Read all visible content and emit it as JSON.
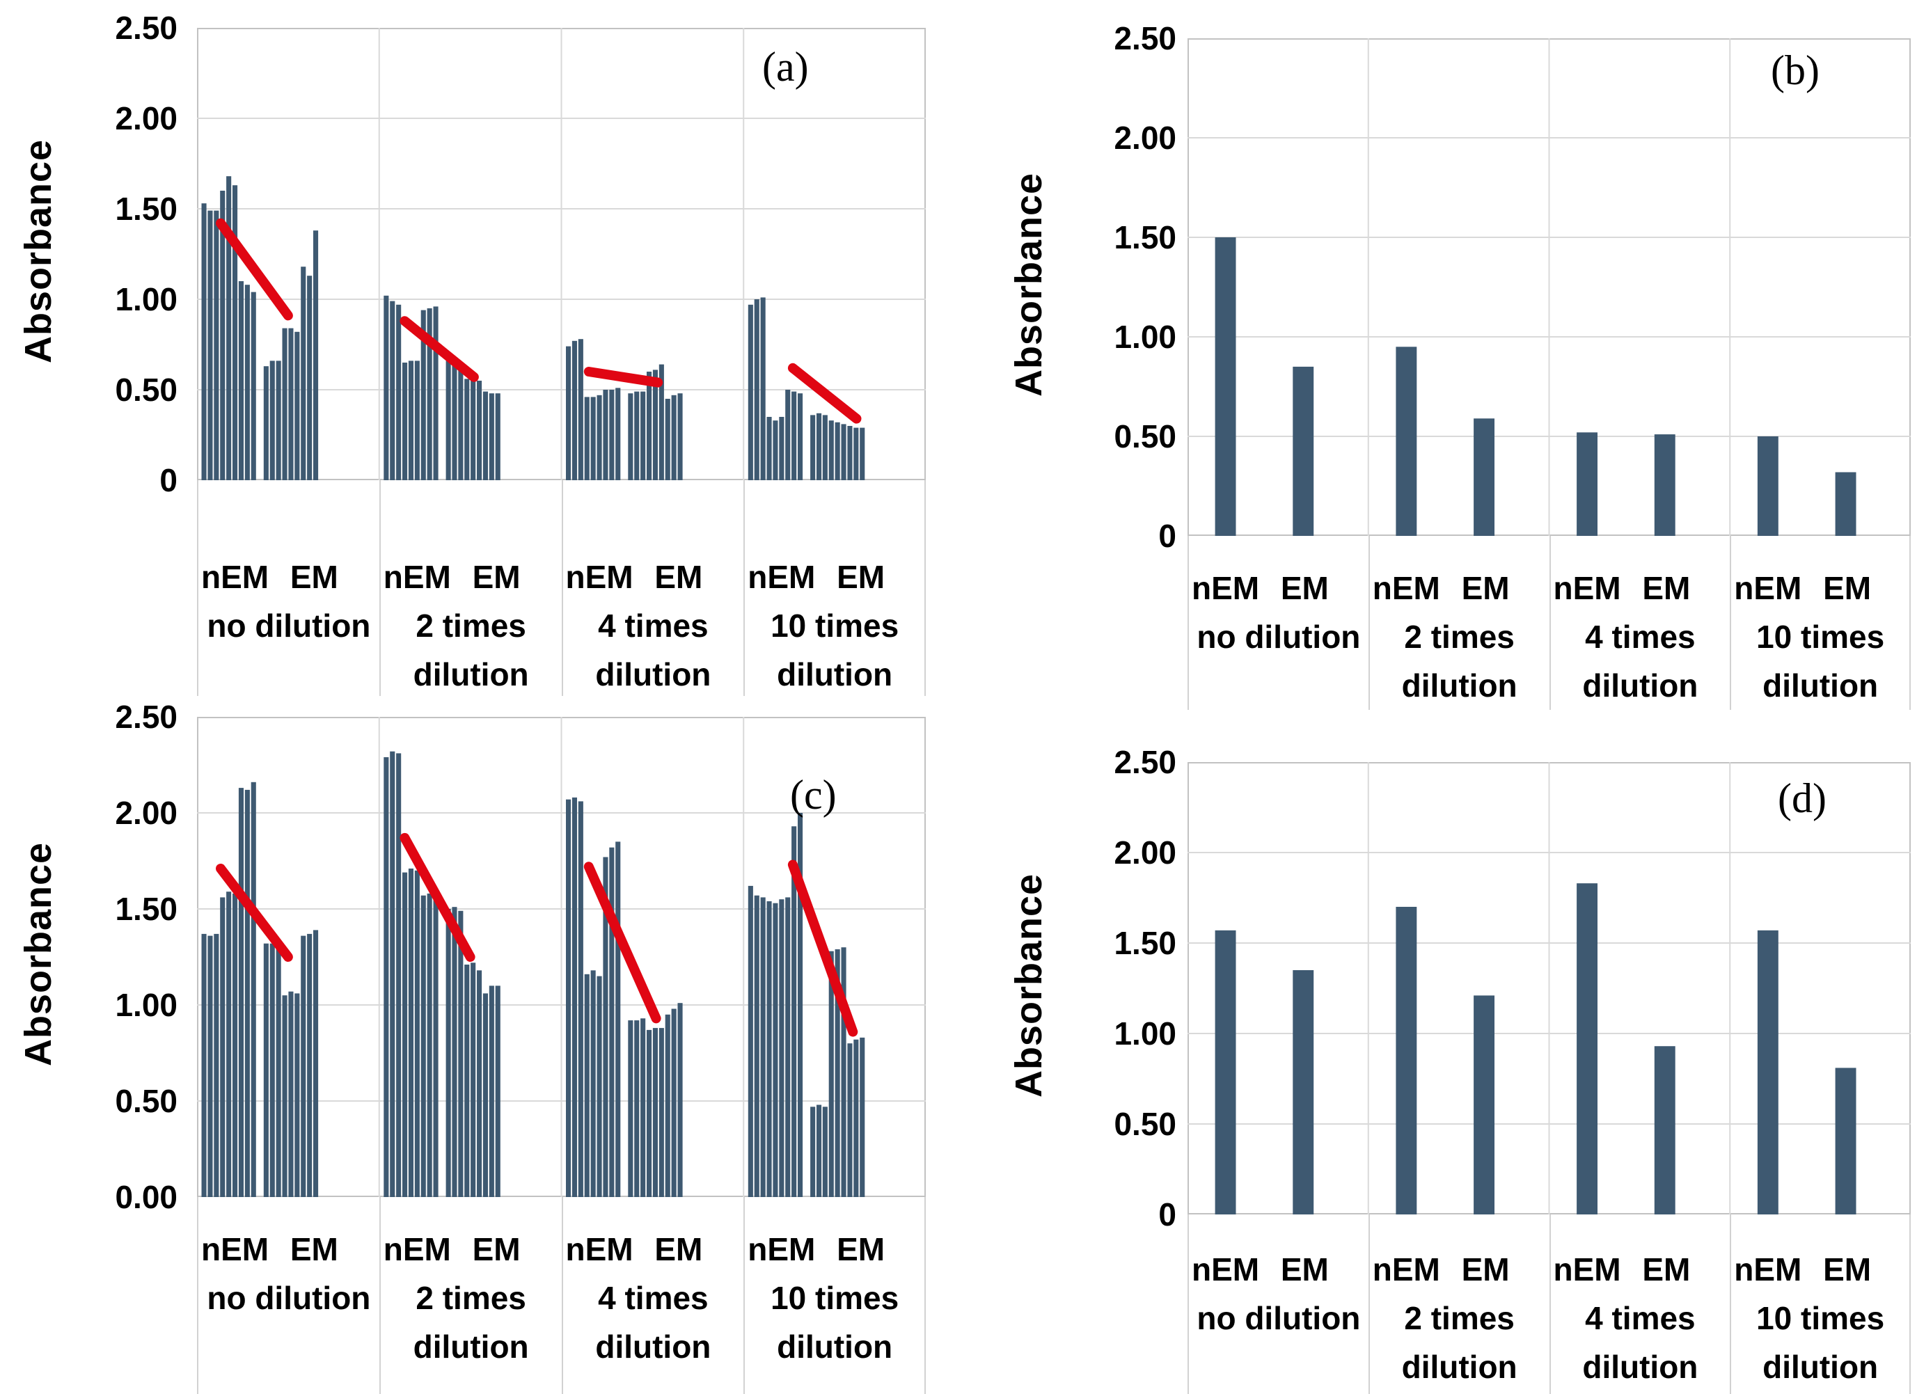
{
  "chart_data": [
    {
      "id": "a",
      "type": "bar",
      "letter": "(a)",
      "ylabel": "Absorbance",
      "yticks": [
        "2.50",
        "2.00",
        "1.50",
        "1.00",
        "0.50",
        "0"
      ],
      "ylim": [
        0,
        2.5
      ],
      "grid": "horizontal",
      "sub_labels": "nEM EM",
      "groups": [
        {
          "label_lines": [
            "no dilution"
          ],
          "series": [
            {
              "name": "nEM",
              "values": [
                1.53,
                1.49,
                1.49,
                1.6,
                1.68,
                1.63,
                1.1,
                1.08,
                1.04
              ]
            },
            {
              "name": "EM",
              "values": [
                0.63,
                0.66,
                0.66,
                0.84,
                0.84,
                0.82,
                1.18,
                1.13,
                1.38
              ]
            }
          ],
          "trend": {
            "x1": 0.13,
            "y1": 1.42,
            "x2": 0.5,
            "y2": 0.91
          }
        },
        {
          "label_lines": [
            "2 times",
            "dilution"
          ],
          "series": [
            {
              "name": "nEM",
              "values": [
                1.02,
                0.99,
                0.97,
                0.65,
                0.66,
                0.66,
                0.94,
                0.95,
                0.96
              ]
            },
            {
              "name": "EM",
              "values": [
                0.66,
                0.65,
                0.64,
                0.56,
                0.57,
                0.55,
                0.49,
                0.48,
                0.48
              ]
            }
          ],
          "trend": {
            "x1": 0.14,
            "y1": 0.88,
            "x2": 0.52,
            "y2": 0.57
          }
        },
        {
          "label_lines": [
            "4 times",
            "dilution"
          ],
          "series": [
            {
              "name": "nEM",
              "values": [
                0.74,
                0.77,
                0.78,
                0.46,
                0.46,
                0.47,
                0.5,
                0.5,
                0.51
              ]
            },
            {
              "name": "EM",
              "values": [
                0.48,
                0.49,
                0.49,
                0.6,
                0.61,
                0.64,
                0.45,
                0.47,
                0.48
              ]
            }
          ],
          "trend": {
            "x1": 0.15,
            "y1": 0.6,
            "x2": 0.53,
            "y2": 0.54
          }
        },
        {
          "label_lines": [
            "10 times",
            "dilution"
          ],
          "series": [
            {
              "name": "nEM",
              "values": [
                0.97,
                1.0,
                1.01,
                0.35,
                0.33,
                0.35,
                0.5,
                0.49,
                0.48
              ]
            },
            {
              "name": "EM",
              "values": [
                0.36,
                0.37,
                0.36,
                0.33,
                0.32,
                0.31,
                0.3,
                0.29,
                0.29
              ]
            }
          ],
          "trend": {
            "x1": 0.27,
            "y1": 0.62,
            "x2": 0.62,
            "y2": 0.34
          }
        }
      ]
    },
    {
      "id": "b",
      "type": "bar",
      "letter": "(b)",
      "ylabel": "Absorbance",
      "yticks": [
        "2.50",
        "2.00",
        "1.50",
        "1.00",
        "0.50",
        "0"
      ],
      "ylim": [
        0,
        2.5
      ],
      "grid": "horizontal",
      "sub_labels": "nEM EM",
      "groups": [
        {
          "label_lines": [
            "no dilution"
          ],
          "series": [
            {
              "name": "nEM",
              "values": [
                1.5
              ]
            },
            {
              "name": "EM",
              "values": [
                0.85
              ]
            }
          ],
          "trend": null
        },
        {
          "label_lines": [
            "2 times",
            "dilution"
          ],
          "series": [
            {
              "name": "nEM",
              "values": [
                0.95
              ]
            },
            {
              "name": "EM",
              "values": [
                0.59
              ]
            }
          ],
          "trend": null
        },
        {
          "label_lines": [
            "4 times",
            "dilution"
          ],
          "series": [
            {
              "name": "nEM",
              "values": [
                0.52
              ]
            },
            {
              "name": "EM",
              "values": [
                0.51
              ]
            }
          ],
          "trend": null
        },
        {
          "label_lines": [
            "10 times",
            "dilution"
          ],
          "series": [
            {
              "name": "nEM",
              "values": [
                0.5
              ]
            },
            {
              "name": "EM",
              "values": [
                0.32
              ]
            }
          ],
          "trend": null
        }
      ]
    },
    {
      "id": "c",
      "type": "bar",
      "letter": "(c)",
      "ylabel": "Absorbance",
      "yticks": [
        "2.50",
        "2.00",
        "1.50",
        "1.00",
        "0.50",
        "0.00"
      ],
      "ylim": [
        0,
        2.5
      ],
      "grid": "horizontal",
      "sub_labels": "nEM EM",
      "groups": [
        {
          "label_lines": [
            "no dilution"
          ],
          "series": [
            {
              "name": "nEM",
              "values": [
                1.37,
                1.36,
                1.37,
                1.56,
                1.59,
                1.58,
                2.13,
                2.12,
                2.16
              ]
            },
            {
              "name": "EM",
              "values": [
                1.32,
                1.32,
                1.31,
                1.05,
                1.07,
                1.06,
                1.36,
                1.37,
                1.39
              ]
            }
          ],
          "trend": {
            "x1": 0.13,
            "y1": 1.71,
            "x2": 0.5,
            "y2": 1.25
          }
        },
        {
          "label_lines": [
            "2 times",
            "dilution"
          ],
          "series": [
            {
              "name": "nEM",
              "values": [
                2.29,
                2.32,
                2.31,
                1.69,
                1.71,
                1.7,
                1.57,
                1.58,
                1.59
              ]
            },
            {
              "name": "EM",
              "values": [
                1.5,
                1.51,
                1.49,
                1.21,
                1.22,
                1.18,
                1.06,
                1.1,
                1.1
              ]
            }
          ],
          "trend": {
            "x1": 0.14,
            "y1": 1.87,
            "x2": 0.5,
            "y2": 1.25
          }
        },
        {
          "label_lines": [
            "4 times",
            "dilution"
          ],
          "series": [
            {
              "name": "nEM",
              "values": [
                2.07,
                2.08,
                2.06,
                1.16,
                1.18,
                1.15,
                1.77,
                1.82,
                1.85
              ]
            },
            {
              "name": "EM",
              "values": [
                0.92,
                0.92,
                0.93,
                0.87,
                0.88,
                0.88,
                0.95,
                0.98,
                1.01
              ]
            }
          ],
          "trend": {
            "x1": 0.15,
            "y1": 1.72,
            "x2": 0.52,
            "y2": 0.93
          }
        },
        {
          "label_lines": [
            "10 times",
            "dilution"
          ],
          "series": [
            {
              "name": "nEM",
              "values": [
                1.62,
                1.57,
                1.56,
                1.54,
                1.53,
                1.55,
                1.56,
                1.93,
                2.0
              ]
            },
            {
              "name": "EM",
              "values": [
                0.47,
                0.48,
                0.47,
                1.28,
                1.29,
                1.3,
                0.8,
                0.82,
                0.83
              ]
            }
          ],
          "trend": {
            "x1": 0.27,
            "y1": 1.73,
            "x2": 0.6,
            "y2": 0.86
          }
        }
      ]
    },
    {
      "id": "d",
      "type": "bar",
      "letter": "(d)",
      "ylabel": "Absorbance",
      "yticks": [
        "2.50",
        "2.00",
        "1.50",
        "1.00",
        "0.50",
        "0"
      ],
      "ylim": [
        0,
        2.5
      ],
      "grid": "horizontal",
      "sub_labels": "nEM EM",
      "groups": [
        {
          "label_lines": [
            "no dilution"
          ],
          "series": [
            {
              "name": "nEM",
              "values": [
                1.57
              ]
            },
            {
              "name": "EM",
              "values": [
                1.35
              ]
            }
          ],
          "trend": null
        },
        {
          "label_lines": [
            "2 times",
            "dilution"
          ],
          "series": [
            {
              "name": "nEM",
              "values": [
                1.7
              ]
            },
            {
              "name": "EM",
              "values": [
                1.21
              ]
            }
          ],
          "trend": null
        },
        {
          "label_lines": [
            "4 times",
            "dilution"
          ],
          "series": [
            {
              "name": "nEM",
              "values": [
                1.83
              ]
            },
            {
              "name": "EM",
              "values": [
                0.93
              ]
            }
          ],
          "trend": null
        },
        {
          "label_lines": [
            "10 times",
            "dilution"
          ],
          "series": [
            {
              "name": "nEM",
              "values": [
                1.57
              ]
            },
            {
              "name": "EM",
              "values": [
                0.81
              ]
            }
          ],
          "trend": null
        }
      ]
    }
  ],
  "colors": {
    "bar": "#3e5971",
    "trend": "#e00613",
    "gridline": "#d9d9d9",
    "plot_border": "#c2c2c2"
  }
}
